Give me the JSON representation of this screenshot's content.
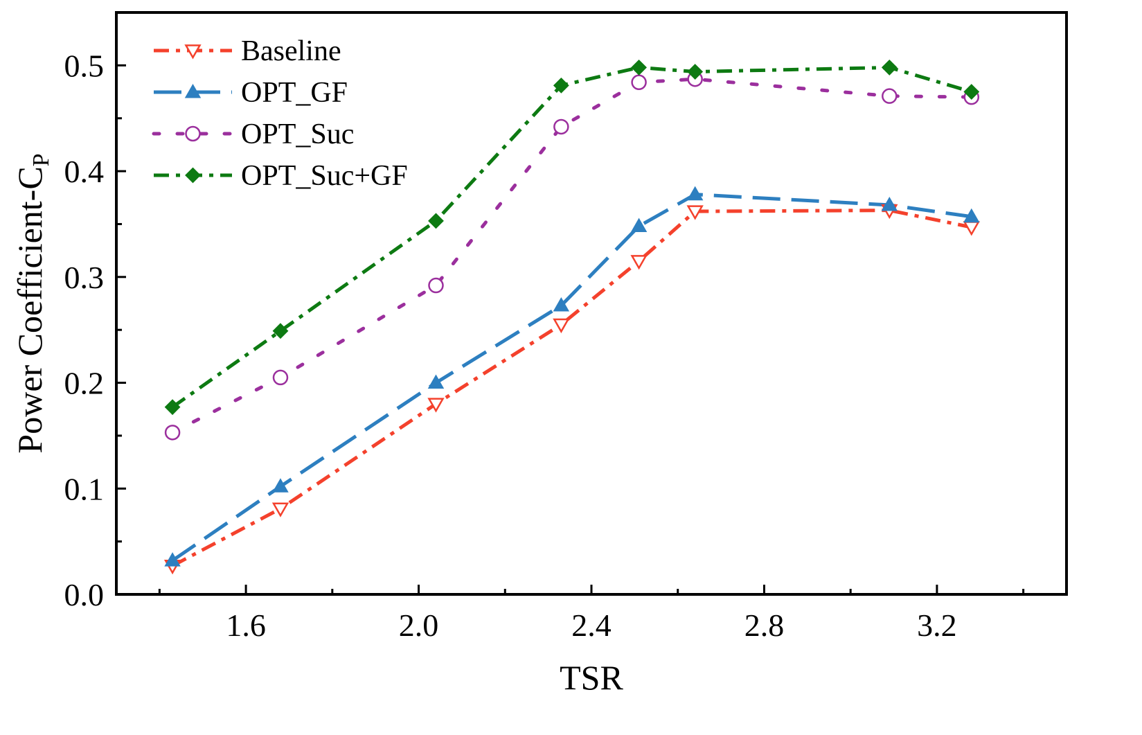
{
  "chart_data": {
    "type": "line",
    "title": "",
    "xlabel": "TSR",
    "ylabel": "Power Coefficient-C",
    "ylabel_subscript": "P",
    "xlim": [
      1.3,
      3.5
    ],
    "ylim": [
      0.0,
      0.55
    ],
    "xticks": [
      1.6,
      2.0,
      2.4,
      2.8,
      3.2
    ],
    "xtick_labels": [
      "1.6",
      "2.0",
      "2.4",
      "2.8",
      "3.2"
    ],
    "yticks": [
      0.0,
      0.1,
      0.2,
      0.3,
      0.4,
      0.5
    ],
    "ytick_labels": [
      "0.0",
      "0.1",
      "0.2",
      "0.3",
      "0.4",
      "0.5"
    ],
    "grid": false,
    "legend_position": "top-left",
    "series": [
      {
        "name": "Baseline",
        "color": "#f4412c",
        "dash": "dashdot",
        "marker": "triangle-down-open",
        "x": [
          1.43,
          1.68,
          2.04,
          2.33,
          2.51,
          2.64,
          3.09,
          3.28
        ],
        "y": [
          0.027,
          0.081,
          0.18,
          0.255,
          0.315,
          0.362,
          0.363,
          0.347
        ]
      },
      {
        "name": "OPT_GF",
        "color": "#2d7fc0",
        "dash": "longdash",
        "marker": "triangle-up-filled",
        "x": [
          1.43,
          1.68,
          2.04,
          2.33,
          2.51,
          2.64,
          3.09,
          3.28
        ],
        "y": [
          0.032,
          0.102,
          0.2,
          0.273,
          0.348,
          0.378,
          0.368,
          0.357
        ]
      },
      {
        "name": "OPT_Suc",
        "color": "#9b2f9d",
        "dash": "dotted",
        "marker": "circle-open",
        "x": [
          1.43,
          1.68,
          2.04,
          2.33,
          2.51,
          2.64,
          3.09,
          3.28
        ],
        "y": [
          0.153,
          0.205,
          0.292,
          0.442,
          0.484,
          0.487,
          0.471,
          0.47
        ]
      },
      {
        "name": "OPT_Suc+GF",
        "color": "#0d7a12",
        "dash": "dashdot",
        "marker": "diamond-filled",
        "x": [
          1.43,
          1.68,
          2.04,
          2.33,
          2.51,
          2.64,
          3.09,
          3.28
        ],
        "y": [
          0.177,
          0.249,
          0.353,
          0.481,
          0.498,
          0.494,
          0.498,
          0.475
        ]
      }
    ]
  }
}
